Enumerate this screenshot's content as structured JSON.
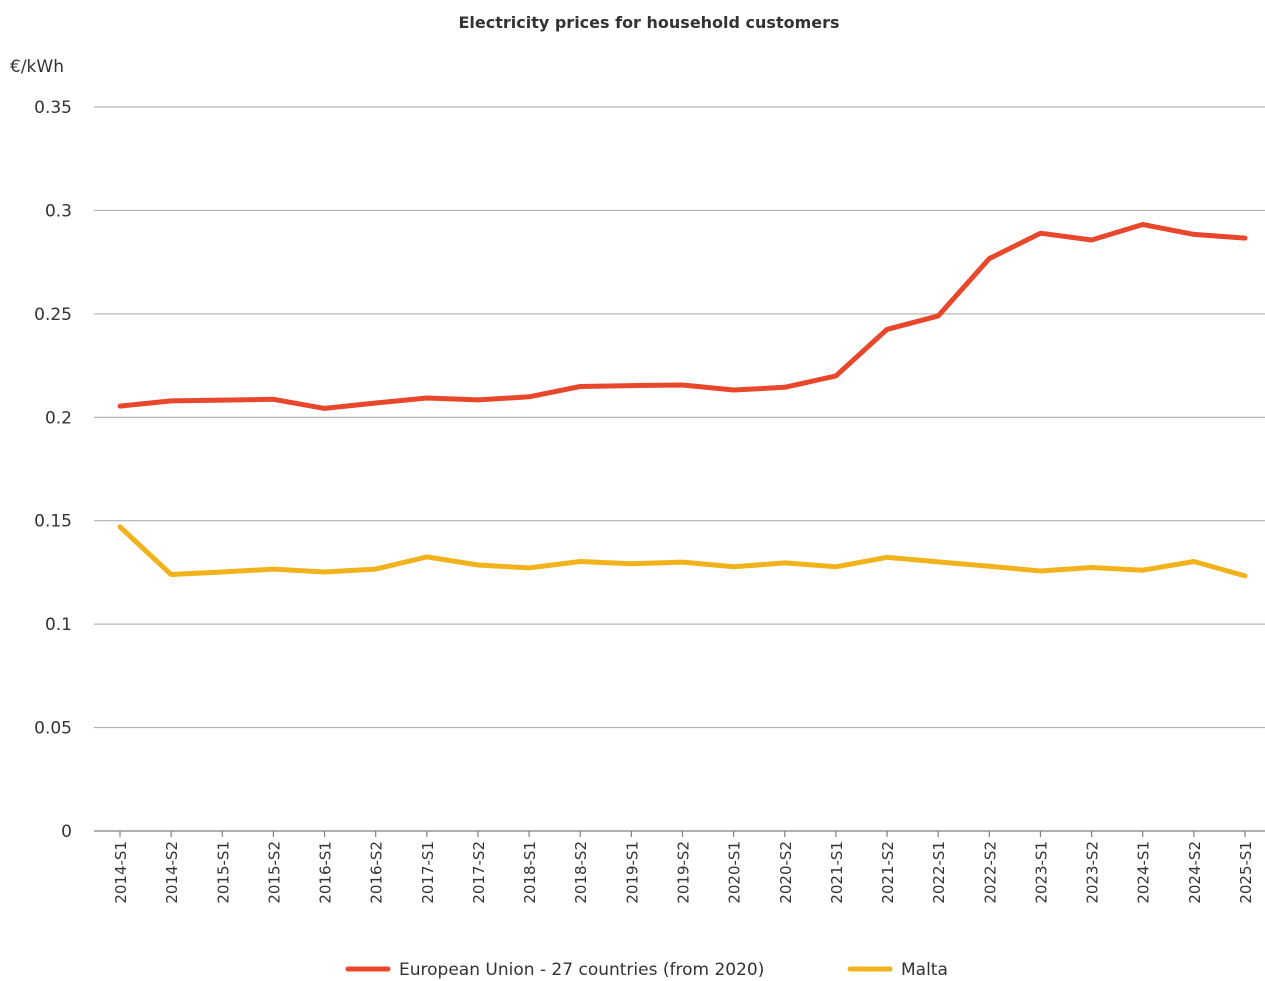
{
  "chart_data": {
    "type": "line",
    "title": "Electricity prices for household customers",
    "ylabel": "€/kWh",
    "xlabel": "",
    "ylim": [
      0,
      0.35
    ],
    "yticks": [
      0,
      0.05,
      0.1,
      0.15,
      0.2,
      0.25,
      0.3,
      0.35
    ],
    "ytick_labels": [
      "0",
      "0.05",
      "0.1",
      "0.15",
      "0.2",
      "0.25",
      "0.3",
      "0.35"
    ],
    "grid": true,
    "legend_position": "bottom",
    "categories": [
      "2014-S1",
      "2014-S2",
      "2015-S1",
      "2015-S2",
      "2016-S1",
      "2016-S2",
      "2017-S1",
      "2017-S2",
      "2018-S1",
      "2018-S2",
      "2019-S1",
      "2019-S2",
      "2020-S1",
      "2020-S2",
      "2021-S1",
      "2021-S2",
      "2022-S1",
      "2022-S2",
      "2023-S1",
      "2023-S2",
      "2024-S1",
      "2024-S2",
      "2025-S1"
    ],
    "series": [
      {
        "name": "European Union - 27 countries (from 2020)",
        "color": "#e8472b",
        "values": [
          0.2054,
          0.2079,
          0.2083,
          0.2087,
          0.2043,
          0.2069,
          0.2093,
          0.2084,
          0.2099,
          0.2149,
          0.2153,
          0.2156,
          0.2132,
          0.2145,
          0.22,
          0.2425,
          0.249,
          0.2767,
          0.289,
          0.2857,
          0.2932,
          0.2884,
          0.2866
        ]
      },
      {
        "name": "Malta",
        "color": "#f2b21b",
        "values": [
          0.147,
          0.124,
          0.1252,
          0.1266,
          0.1252,
          0.1266,
          0.1325,
          0.1286,
          0.1272,
          0.1303,
          0.1292,
          0.13,
          0.1277,
          0.1296,
          0.1277,
          0.1323,
          0.1301,
          0.128,
          0.1257,
          0.1274,
          0.1261,
          0.1303,
          0.1233
        ]
      }
    ]
  }
}
